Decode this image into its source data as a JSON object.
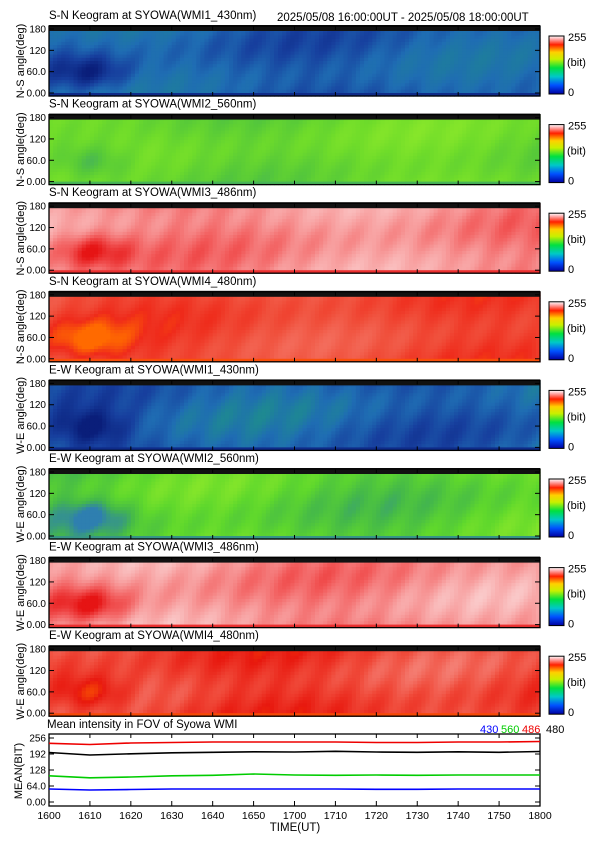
{
  "header": {
    "time_range": "2025/05/08 16:00:00UT - 2025/05/08 18:00:00UT"
  },
  "colors": {
    "blue_series": "#0000ff",
    "green_series": "#00cc00",
    "red_series": "#ee0000",
    "black_series": "#000000"
  },
  "keograms": [
    {
      "title": "S-N Keogram at SYOWA(WMI1_430nm)",
      "ylabel": "N-S angle(deg)",
      "yticks": [
        "180",
        "120",
        "60.0",
        "0.00"
      ],
      "cb_max": "255",
      "cb_unit": "(bit)",
      "cb_min": "0",
      "palette": [
        "#0a1e7a",
        "#173f9e",
        "#1f6db3",
        "#1e7f9a",
        "#1a8a7a"
      ],
      "level": 0.28
    },
    {
      "title": "S-N Keogram at SYOWA(WMI2_560nm)",
      "ylabel": "N-S angle(deg)",
      "yticks": [
        "180",
        "120",
        "60.0",
        "0.00"
      ],
      "cb_max": "255",
      "cb_unit": "(bit)",
      "cb_min": "0",
      "palette": [
        "#3fa86a",
        "#55c83a",
        "#6fdc2a",
        "#8be82a",
        "#9ee634"
      ],
      "level": 0.55
    },
    {
      "title": "S-N Keogram at SYOWA(WMI3_486nm)",
      "ylabel": "N-S angle(deg)",
      "yticks": [
        "180",
        "120",
        "60.0",
        "0.00"
      ],
      "cb_max": "255",
      "cb_unit": "(bit)",
      "cb_min": "0",
      "palette": [
        "#e61414",
        "#f25a5a",
        "#f79a9a",
        "#fbc8c8",
        "#fde6e6"
      ],
      "level": 0.85
    },
    {
      "title": "S-N Keogram at SYOWA(WMI4_480nm)",
      "ylabel": "N-S angle(deg)",
      "yticks": [
        "180",
        "120",
        "60.0",
        "0.00"
      ],
      "cb_max": "255",
      "cb_unit": "(bit)",
      "cb_min": "0",
      "palette": [
        "#ff6a00",
        "#ef2a1a",
        "#f0503c",
        "#f47262",
        "#f79488"
      ],
      "level": 0.9
    },
    {
      "title": "E-W Keogram at SYOWA(WMI1_430nm)",
      "ylabel": "W-E angle(deg)",
      "yticks": [
        "180",
        "120",
        "60.0",
        "0.00"
      ],
      "cb_max": "255",
      "cb_unit": "(bit)",
      "cb_min": "0",
      "palette": [
        "#0a1e7a",
        "#173f9e",
        "#1f6db3",
        "#1e8f8a",
        "#2aa85a"
      ],
      "level": 0.3
    },
    {
      "title": "E-W Keogram at SYOWA(WMI2_560nm)",
      "ylabel": "W-E angle(deg)",
      "yticks": [
        "180",
        "120",
        "60.0",
        "0.00"
      ],
      "cb_max": "255",
      "cb_unit": "(bit)",
      "cb_min": "0",
      "palette": [
        "#2e7fb0",
        "#44b84a",
        "#5fd82c",
        "#8be82a",
        "#d8e820"
      ],
      "level": 0.55
    },
    {
      "title": "E-W Keogram at SYOWA(WMI3_486nm)",
      "ylabel": "W-E angle(deg)",
      "yticks": [
        "180",
        "120",
        "60.0",
        "0.00"
      ],
      "cb_max": "255",
      "cb_unit": "(bit)",
      "cb_min": "0",
      "palette": [
        "#e61414",
        "#f25a5a",
        "#f79a9a",
        "#fbd4d4",
        "#fff0f0"
      ],
      "level": 0.85
    },
    {
      "title": "E-W Keogram at SYOWA(WMI4_480nm)",
      "ylabel": "W-E angle(deg)",
      "yticks": [
        "180",
        "120",
        "60.0",
        "0.00"
      ],
      "cb_max": "255",
      "cb_unit": "(bit)",
      "cb_min": "0",
      "palette": [
        "#ff6a00",
        "#e8180e",
        "#f04a3a",
        "#f58a80",
        "#fcd8d4"
      ],
      "level": 0.9
    }
  ],
  "chart_data": {
    "type": "line",
    "title": "Mean intensity in FOV of Syowa WMI",
    "xlabel": "TIME(UT)",
    "ylabel": "MEAN(BIT)",
    "xticks": [
      "1600",
      "1610",
      "1620",
      "1630",
      "1640",
      "1650",
      "1700",
      "1710",
      "1720",
      "1730",
      "1740",
      "1750",
      "1800"
    ],
    "yticks": [
      "256",
      "192",
      "128",
      "64.0",
      "0.00"
    ],
    "ylim": [
      0,
      256
    ],
    "x": [
      1600,
      1610,
      1620,
      1630,
      1640,
      1650,
      1700,
      1710,
      1720,
      1730,
      1740,
      1750,
      1800
    ],
    "series": [
      {
        "name": "430",
        "color": "#0000ff",
        "values": [
          52,
          48,
          50,
          52,
          52,
          52,
          52,
          52,
          51,
          51,
          52,
          52,
          52
        ]
      },
      {
        "name": "560",
        "color": "#00cc00",
        "values": [
          105,
          97,
          100,
          105,
          107,
          112,
          108,
          107,
          108,
          107,
          108,
          108,
          108
        ]
      },
      {
        "name": "486",
        "color": "#ee0000",
        "values": [
          235,
          230,
          236,
          238,
          240,
          240,
          240,
          240,
          238,
          238,
          240,
          240,
          242
        ]
      },
      {
        "name": "480",
        "color": "#000000",
        "values": [
          198,
          188,
          193,
          197,
          199,
          201,
          200,
          203,
          200,
          199,
          201,
          199,
          202
        ]
      }
    ]
  }
}
